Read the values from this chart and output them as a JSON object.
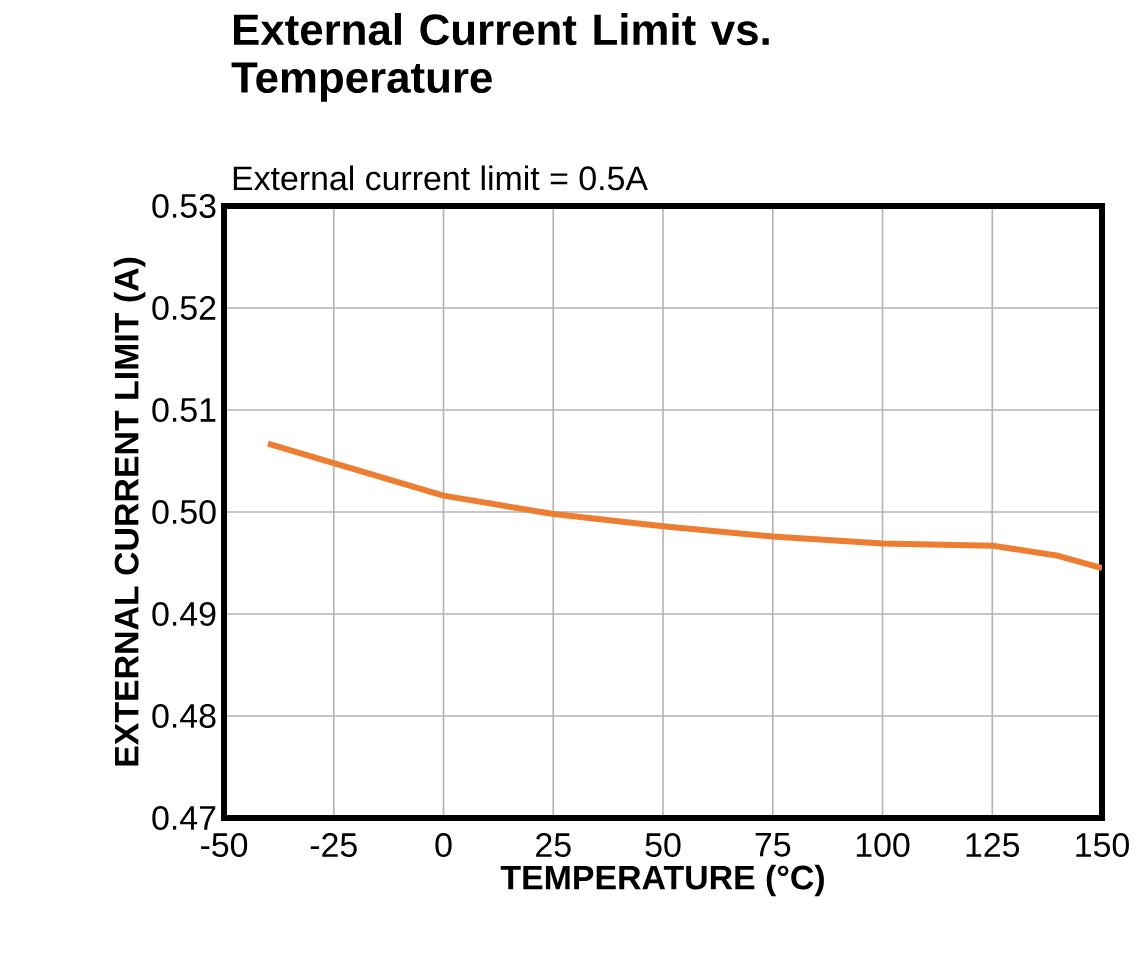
{
  "chart_data": {
    "type": "line",
    "title": "External Current Limit vs. Temperature",
    "subtitle": "External current limit = 0.5A",
    "xlabel": "TEMPERATURE (°C)",
    "ylabel": "EXTERNAL CURRENT LIMIT (A)",
    "x": [
      -40,
      -25,
      0,
      25,
      50,
      75,
      100,
      125,
      140,
      150
    ],
    "series": [
      {
        "color": "#ed7d31",
        "values": [
          0.5067,
          0.5048,
          0.5016,
          0.4998,
          0.4986,
          0.4976,
          0.4969,
          0.4967,
          0.4957,
          0.4945
        ]
      }
    ],
    "xlim": [
      -50,
      150
    ],
    "ylim": [
      0.47,
      0.53
    ],
    "xticks": [
      -50,
      -25,
      0,
      25,
      50,
      75,
      100,
      125,
      150
    ],
    "yticks": [
      {
        "value": 0.47,
        "label": "0.47"
      },
      {
        "value": 0.48,
        "label": "0.48"
      },
      {
        "value": 0.49,
        "label": "0.49"
      },
      {
        "value": 0.5,
        "label": "0.50"
      },
      {
        "value": 0.51,
        "label": "0.51"
      },
      {
        "value": 0.52,
        "label": "0.52"
      },
      {
        "value": 0.53,
        "label": "0.53"
      }
    ],
    "grid": true,
    "marker": "none",
    "line_style": "solid"
  }
}
